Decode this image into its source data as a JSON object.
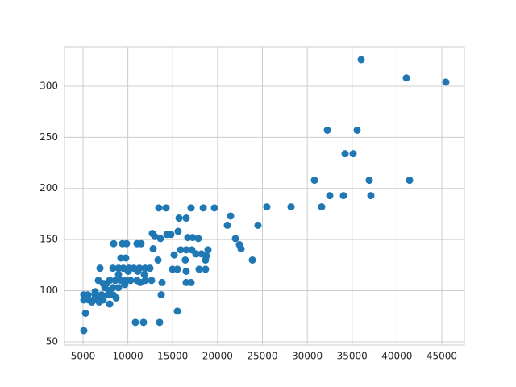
{
  "chart_data": {
    "type": "scatter",
    "color": "#1f77b4",
    "grid": true,
    "xlim": [
      2933,
      47517
    ],
    "ylim": [
      46.8,
      338.6
    ],
    "xticks": [
      5000,
      10000,
      15000,
      20000,
      25000,
      30000,
      35000,
      40000,
      45000
    ],
    "yticks": [
      50,
      100,
      150,
      200,
      250,
      300
    ],
    "x": [
      36011,
      41045,
      45450,
      32236,
      35560,
      34213,
      35112,
      30800,
      36910,
      41404,
      32505,
      34034,
      37090,
      31600,
      25490,
      28190,
      24500,
      19650,
      21450,
      21090,
      21990,
      22440,
      22620,
      23880,
      17045,
      18400,
      13450,
      14260,
      15700,
      16500,
      15600,
      14350,
      14800,
      12730,
      13000,
      13630,
      16685,
      17225,
      17850,
      15880,
      16500,
      17130,
      17580,
      18200,
      18750,
      18930,
      18660,
      16400,
      13360,
      12820,
      15160,
      17940,
      18660,
      14980,
      15520,
      16500,
      16500,
      17045,
      13810,
      13720,
      15520,
      10840,
      11740,
      13540,
      5090,
      5270,
      5090,
      5540,
      5090,
      5630,
      6170,
      6620,
      7250,
      7790,
      7070,
      6350,
      8330,
      8690,
      6710,
      7250,
      7610,
      7970,
      8600,
      9220,
      9760,
      10300,
      11020,
      11920,
      12640,
      6890,
      8420,
      9400,
      9850,
      11020,
      11470,
      9220,
      9760,
      8330,
      8960,
      9490,
      10120,
      10660,
      11290,
      11920,
      12460,
      10030,
      11110,
      8960,
      11830,
      11380,
      7880,
      8330,
      7430,
      8960,
      9670,
      6350,
      7970,
      6800,
      5990
    ],
    "values": [
      326,
      308,
      304,
      257,
      257,
      234,
      234,
      208,
      208,
      208,
      193,
      193,
      193,
      182,
      182,
      182,
      164,
      181,
      173,
      164,
      151,
      145,
      141,
      130,
      181,
      181,
      181,
      181,
      171,
      171,
      158,
      155,
      155,
      156,
      153,
      151,
      152,
      152,
      151,
      140,
      140,
      140,
      136,
      136,
      134,
      140,
      130,
      130,
      130,
      141,
      135,
      121,
      121,
      121,
      121,
      119,
      108,
      108,
      108,
      96,
      80,
      69,
      69,
      69,
      61,
      78,
      96,
      96,
      91,
      91,
      91,
      91,
      91,
      96,
      96,
      96,
      96,
      93,
      110,
      107,
      107,
      110,
      110,
      110,
      110,
      110,
      110,
      110,
      110,
      122,
      146,
      146,
      146,
      146,
      146,
      132,
      132,
      122,
      122,
      122,
      122,
      122,
      122,
      122,
      122,
      119,
      119,
      116,
      116,
      108,
      100,
      103,
      103,
      103,
      106,
      99,
      87,
      89,
      89
    ]
  }
}
